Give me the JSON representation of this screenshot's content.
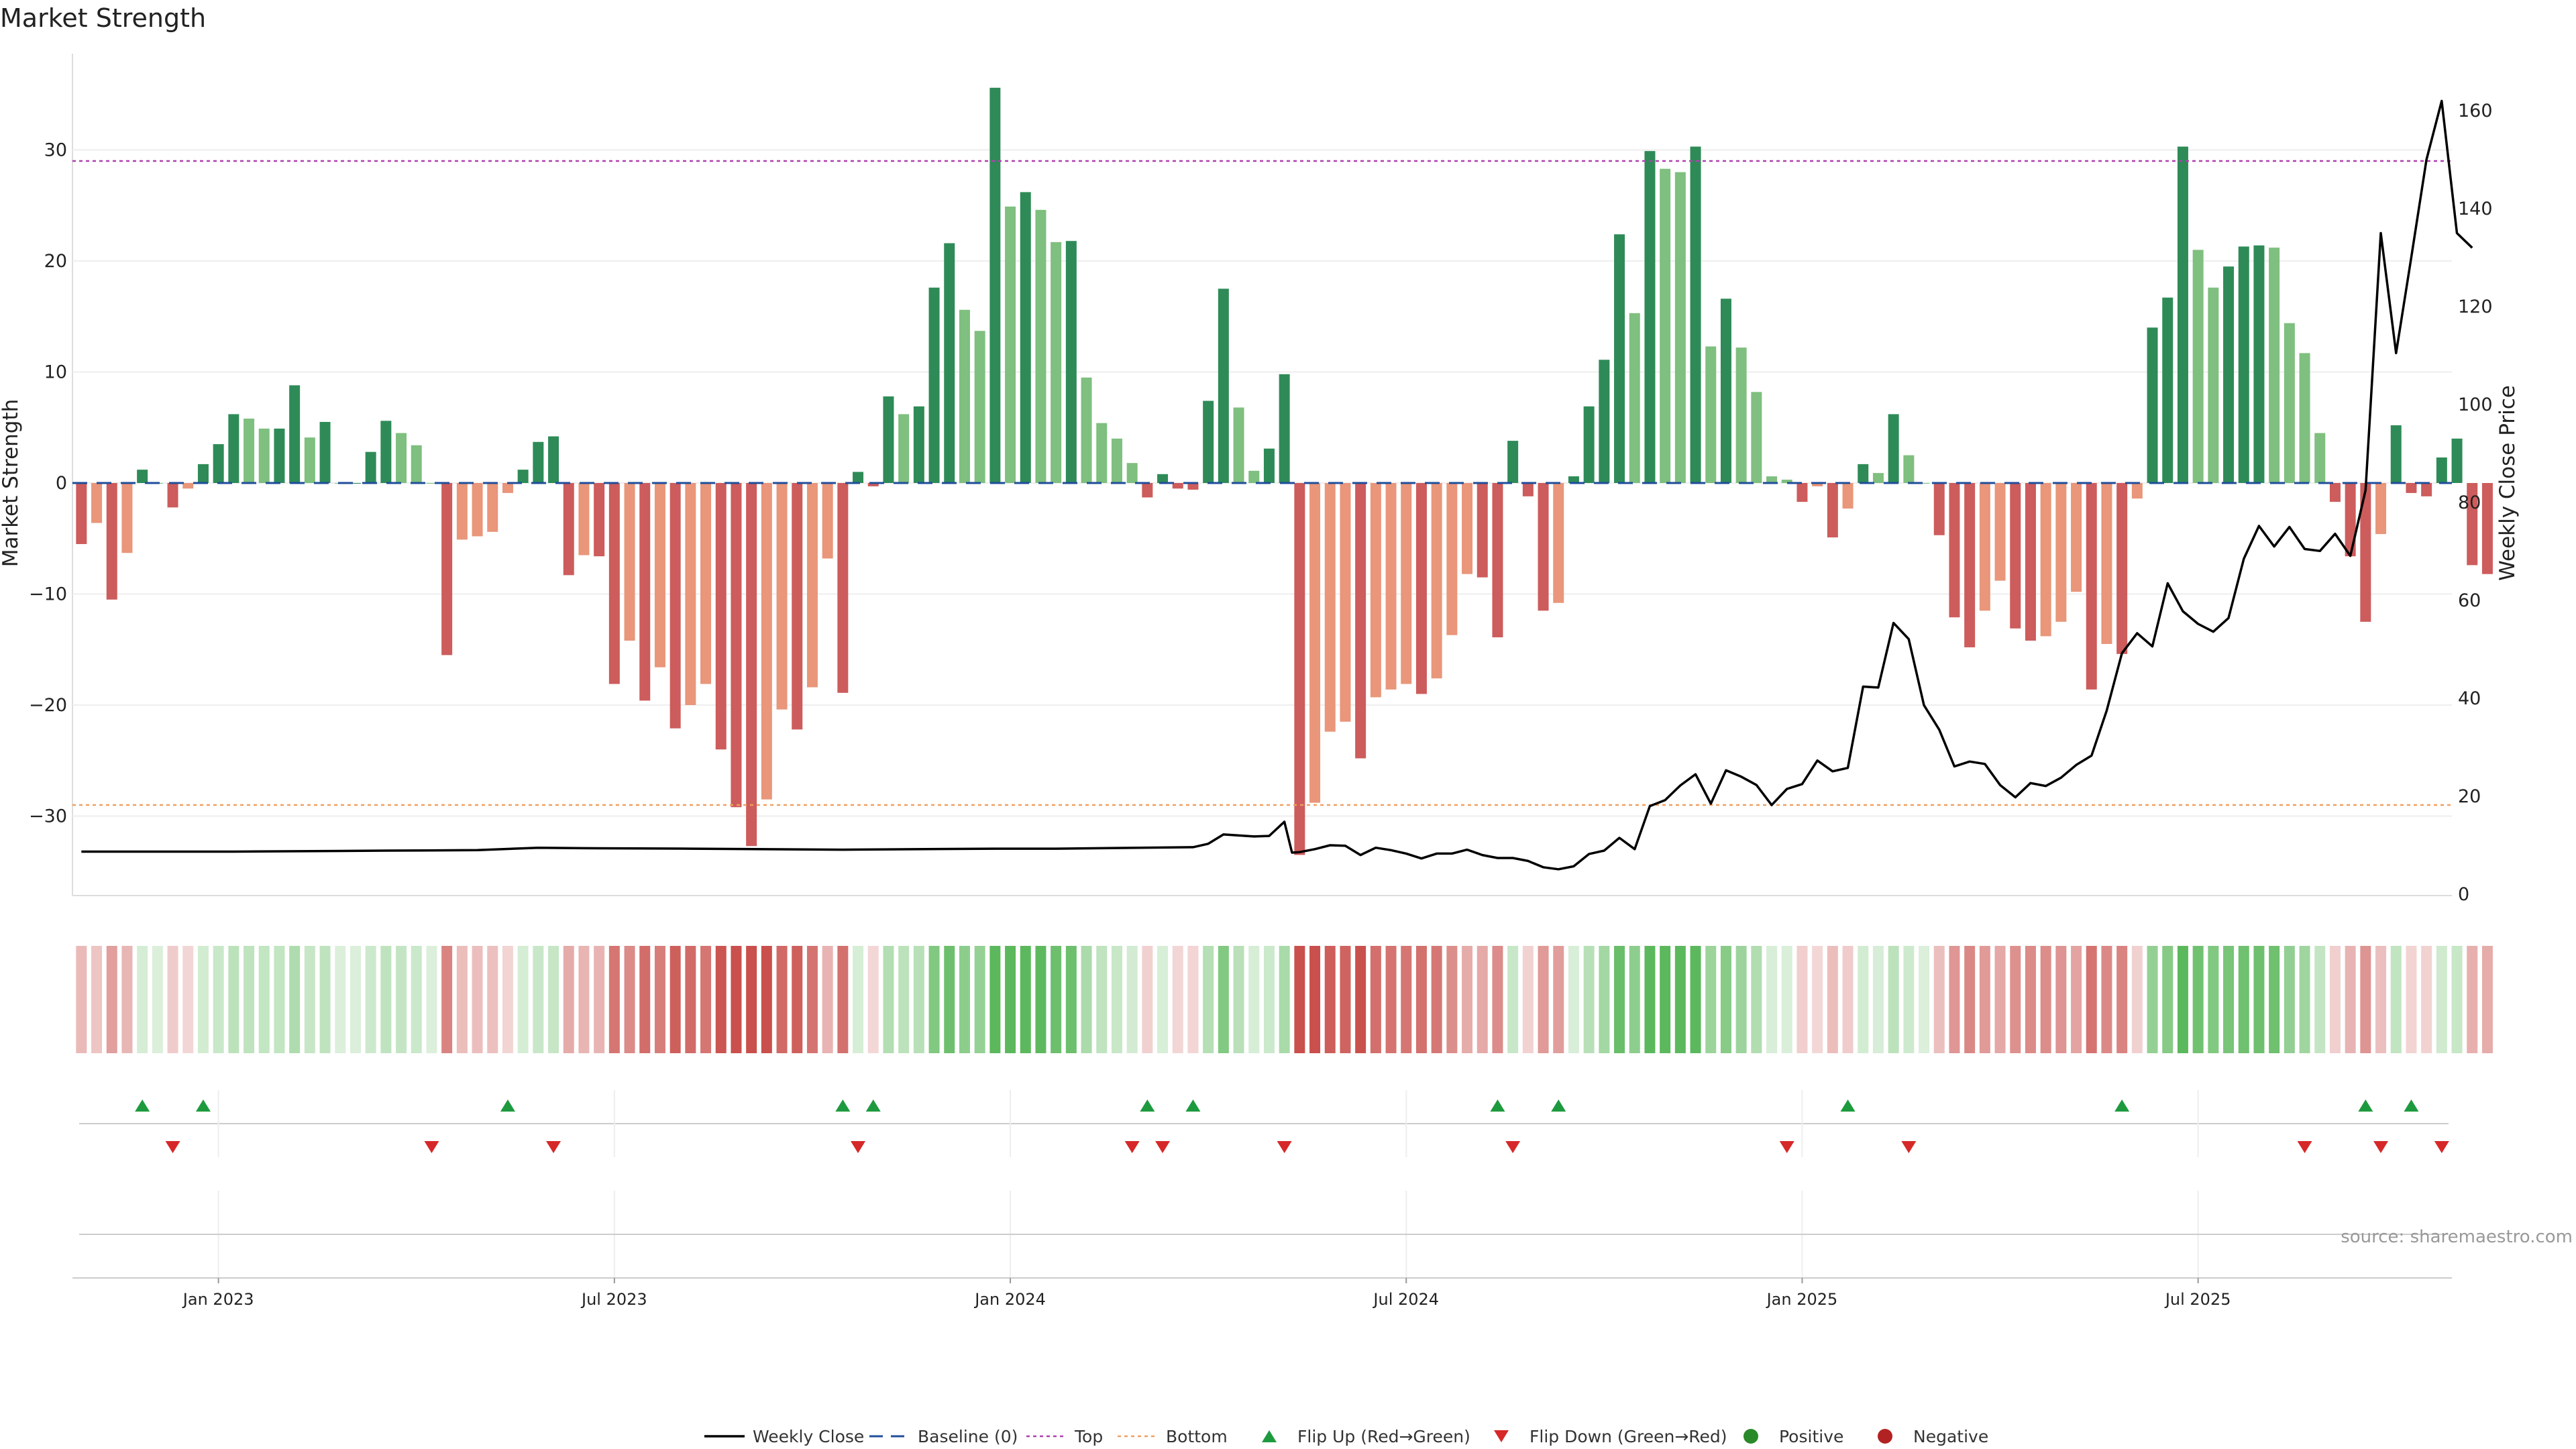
{
  "chart_data": {
    "type": "bar",
    "title": "Market Strength",
    "ylabel": "Market Strength",
    "y2label": "Weekly Close Price",
    "ylim": [
      -37,
      38
    ],
    "y2lim": [
      0,
      170
    ],
    "yticks": [
      30,
      20,
      10,
      0,
      -10,
      -20,
      -30
    ],
    "y2ticks": [
      160,
      140,
      120,
      100,
      80,
      60,
      40,
      20,
      0
    ],
    "xticks": [
      {
        "label": "Jan 2023",
        "week": 9
      },
      {
        "label": "Jul 2023",
        "week": 35
      },
      {
        "label": "Jan 2024",
        "week": 61
      },
      {
        "label": "Jul 2024",
        "week": 87
      },
      {
        "label": "Jan 2025",
        "week": 113
      },
      {
        "label": "Jul 2025",
        "week": 139
      }
    ],
    "top_level": 29,
    "bottom_level": -29,
    "strength": [
      -5.5,
      -3.6,
      -10.5,
      -6.3,
      1.2,
      0,
      -2.2,
      -0.5,
      1.7,
      3.5,
      6.2,
      5.8,
      4.9,
      4.9,
      8.8,
      4.1,
      5.5,
      0,
      0,
      2.8,
      5.6,
      4.5,
      3.4,
      0,
      -15.5,
      -5.1,
      -4.8,
      -4.4,
      -0.9,
      1.2,
      3.7,
      4.2,
      -8.3,
      -6.5,
      -6.6,
      -18.1,
      -14.2,
      -19.6,
      -16.6,
      -22.1,
      -20,
      -18.1,
      -24,
      -29.2,
      -32.7,
      -28.5,
      -20.4,
      -22.2,
      -18.4,
      -6.8,
      -18.9,
      1,
      -0.3,
      7.8,
      6.2,
      6.9,
      17.6,
      21.6,
      15.6,
      13.7,
      35.6,
      24.9,
      26.2,
      24.6,
      21.7,
      21.8,
      9.5,
      5.4,
      4,
      1.8,
      -1.3,
      0.8,
      -0.5,
      -0.6,
      7.4,
      17.5,
      6.8,
      1.1,
      3.1,
      9.8,
      -33.5,
      -28.8,
      -22.4,
      -21.5,
      -24.8,
      -19.3,
      -18.6,
      -18.1,
      -19,
      -17.6,
      -13.7,
      -8.2,
      -8.5,
      -13.9,
      3.8,
      -1.2,
      -11.5,
      -10.8,
      0.6,
      6.9,
      11.1,
      22.4,
      15.3,
      29.9,
      28.3,
      28,
      30.3,
      12.3,
      16.6,
      12.2,
      8.2,
      0.6,
      0.3,
      -1.7,
      -0.3,
      -4.9,
      -2.3,
      1.7,
      0.9,
      6.2,
      2.5,
      0,
      -4.7,
      -12.1,
      -14.8,
      -11.5,
      -8.8,
      -13.1,
      -14.2,
      -13.8,
      -12.5,
      -9.8,
      -18.6,
      -14.5,
      -15.4,
      -1.4,
      14,
      16.7,
      30.3,
      21,
      17.6,
      19.5,
      21.3,
      21.4,
      21.2,
      14.4,
      11.7,
      4.5,
      -1.7,
      -6.6,
      -12.5,
      -4.6,
      5.2,
      -0.9,
      -1.2,
      2.3,
      4,
      -7.4,
      -8.2
    ],
    "price": [
      [
        0,
        8.7
      ],
      [
        10,
        8.7
      ],
      [
        20,
        8.9
      ],
      [
        26,
        9
      ],
      [
        30,
        9.5
      ],
      [
        33,
        9.4
      ],
      [
        40,
        9.3
      ],
      [
        50,
        9.1
      ],
      [
        60,
        9.3
      ],
      [
        64,
        9.3
      ],
      [
        73,
        9.6
      ],
      [
        74,
        10.3
      ],
      [
        75,
        12.2
      ],
      [
        77,
        11.8
      ],
      [
        78,
        11.9
      ],
      [
        79,
        14.8
      ],
      [
        79.5,
        8.5
      ],
      [
        80,
        8.6
      ],
      [
        81,
        9.2
      ],
      [
        82,
        10
      ],
      [
        83,
        9.9
      ],
      [
        84,
        8
      ],
      [
        85,
        9.5
      ],
      [
        86,
        9
      ],
      [
        87,
        8.3
      ],
      [
        88,
        7.3
      ],
      [
        89,
        8.3
      ],
      [
        90,
        8.3
      ],
      [
        91,
        9.1
      ],
      [
        92,
        8
      ],
      [
        93,
        7.4
      ],
      [
        94,
        7.4
      ],
      [
        95,
        6.8
      ],
      [
        96,
        5.5
      ],
      [
        97,
        5.1
      ],
      [
        98,
        5.7
      ],
      [
        99,
        8.2
      ],
      [
        100,
        8.9
      ],
      [
        101,
        11.5
      ],
      [
        102,
        9.2
      ],
      [
        103,
        18
      ],
      [
        104,
        19.2
      ],
      [
        105,
        22.2
      ],
      [
        106,
        24.5
      ],
      [
        107,
        18.5
      ],
      [
        108,
        25.3
      ],
      [
        109,
        24
      ],
      [
        110,
        22.3
      ],
      [
        111,
        18.2
      ],
      [
        112,
        21.5
      ],
      [
        113,
        22.5
      ],
      [
        114,
        27.3
      ],
      [
        115,
        25.1
      ],
      [
        116,
        25.8
      ],
      [
        117,
        42.4
      ],
      [
        118,
        42.2
      ],
      [
        119,
        55.4
      ],
      [
        120,
        52.1
      ],
      [
        121,
        38.6
      ],
      [
        122,
        33.6
      ],
      [
        123,
        26.1
      ],
      [
        124,
        27.1
      ],
      [
        125,
        26.6
      ],
      [
        126,
        22.3
      ],
      [
        127,
        19.8
      ],
      [
        128,
        22.7
      ],
      [
        129,
        22.1
      ],
      [
        130,
        23.8
      ],
      [
        131,
        26.4
      ],
      [
        132,
        28.3
      ],
      [
        133,
        37.5
      ],
      [
        134,
        49.2
      ],
      [
        135,
        53.3
      ],
      [
        136,
        50.6
      ],
      [
        137,
        63.5
      ],
      [
        138,
        57.8
      ],
      [
        139,
        55.2
      ],
      [
        140,
        53.6
      ],
      [
        141,
        56.4
      ],
      [
        142,
        68.5
      ],
      [
        143,
        75.2
      ],
      [
        144,
        71
      ],
      [
        145,
        75
      ],
      [
        146,
        70.5
      ],
      [
        147,
        70.1
      ],
      [
        148,
        73.6
      ],
      [
        149,
        69.1
      ],
      [
        150,
        82.5
      ],
      [
        151,
        135
      ],
      [
        152,
        110.5
      ],
      [
        153,
        130
      ],
      [
        154,
        150
      ],
      [
        155,
        162
      ],
      [
        156,
        135
      ],
      [
        157,
        132
      ]
    ]
  },
  "source": "source: sharemaestro.com",
  "colors": {
    "green_strong": "#2e8b57",
    "green_light": "#7fbf7f",
    "red_strong": "#cd5c5c",
    "red_light": "#e9967a",
    "top": "#b040b0",
    "bottom": "#f0a060",
    "baseline": "#1f4e9a",
    "price": "#000000",
    "flip_up": "#1e9a3e",
    "flip_down": "#d62828",
    "positive": "#2a8a2a",
    "negative": "#b22222"
  },
  "flip_up_weeks": [
    4,
    8,
    28,
    50,
    52,
    70,
    73,
    93,
    97,
    116,
    134,
    150,
    153
  ],
  "flip_down_weeks": [
    6,
    23,
    31,
    51,
    69,
    71,
    79,
    94,
    112,
    120,
    146,
    151,
    155
  ],
  "legend": [
    {
      "label": "Weekly Close",
      "key": "price-line"
    },
    {
      "label": "Baseline (0)",
      "key": "baseline-line"
    },
    {
      "label": "Top",
      "key": "top-line"
    },
    {
      "label": "Bottom",
      "key": "bottom-line"
    },
    {
      "label": "Flip Up (Red→Green)",
      "key": "flip-up-marker"
    },
    {
      "label": "Flip Down (Green→Red)",
      "key": "flip-down-marker"
    },
    {
      "label": "Positive",
      "key": "positive-dot"
    },
    {
      "label": "Negative",
      "key": "negative-dot"
    }
  ]
}
